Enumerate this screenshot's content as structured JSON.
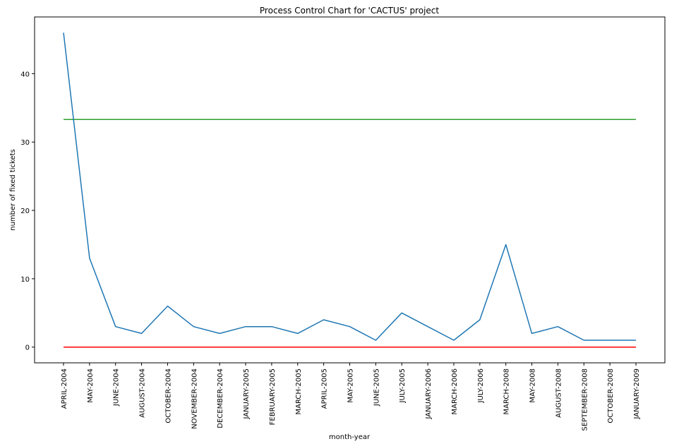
{
  "chart_data": {
    "type": "line",
    "title": "Process Control Chart for 'CACTUS' project",
    "xlabel": "month-year",
    "ylabel": "number of fixed tickets",
    "categories": [
      "APRIL-2004",
      "MAY-2004",
      "JUNE-2004",
      "AUGUST-2004",
      "OCTOBER-2004",
      "NOVEMBER-2004",
      "DECEMBER-2004",
      "JANUARY-2005",
      "FEBRUARY-2005",
      "MARCH-2005",
      "APRIL-2005",
      "MAY-2005",
      "JUNE-2005",
      "JULY-2005",
      "JANUARY-2006",
      "MARCH-2006",
      "JULY-2006",
      "MARCH-2008",
      "MAY-2008",
      "AUGUST-2008",
      "SEPTEMBER-2008",
      "OCTOBER-2008",
      "JANUARY-2009"
    ],
    "series": [
      {
        "values": [
          46,
          13,
          3,
          2,
          6,
          3,
          2,
          3,
          3,
          2,
          4,
          3,
          1,
          5,
          3,
          1,
          4,
          15,
          2,
          3,
          1,
          1,
          1
        ],
        "color": "#1f77b4"
      },
      {
        "values": [
          33.3,
          33.3,
          33.3,
          33.3,
          33.3,
          33.3,
          33.3,
          33.3,
          33.3,
          33.3,
          33.3,
          33.3,
          33.3,
          33.3,
          33.3,
          33.3,
          33.3,
          33.3,
          33.3,
          33.3,
          33.3,
          33.3,
          33.3
        ],
        "color": "#2ca02c"
      },
      {
        "values": [
          0,
          0,
          0,
          0,
          0,
          0,
          0,
          0,
          0,
          0,
          0,
          0,
          0,
          0,
          0,
          0,
          0,
          0,
          0,
          0,
          0,
          0,
          0
        ],
        "color": "#ff0000"
      }
    ],
    "yticks": [
      0,
      10,
      20,
      30,
      40
    ],
    "ylim": [
      -2.3,
      48.3
    ],
    "grid": false,
    "legend": "none"
  }
}
